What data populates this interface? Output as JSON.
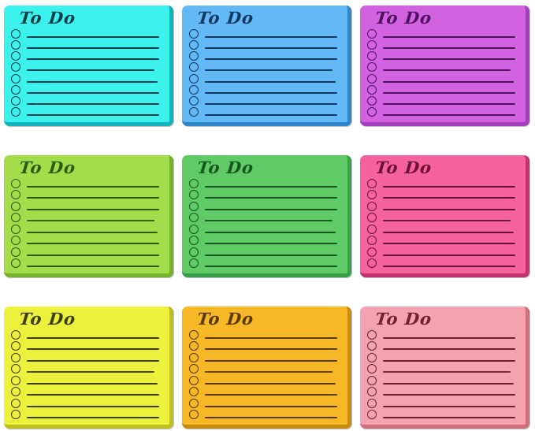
{
  "page": {
    "background_color": "#ffffff",
    "grid": {
      "rows": 3,
      "columns": 3
    }
  },
  "notes": [
    {
      "title": "To Do",
      "color_name": "cyan",
      "bg": "#3BF2EC",
      "edge": "#14B4BE",
      "ink": "#0D3D49",
      "checkbox_lines": 8
    },
    {
      "title": "To Do",
      "color_name": "sky-blue",
      "bg": "#63B8F6",
      "edge": "#2E85CC",
      "ink": "#113863",
      "checkbox_lines": 8
    },
    {
      "title": "To Do",
      "color_name": "orchid",
      "bg": "#D163E1",
      "edge": "#A53EBE",
      "ink": "#4E1060",
      "checkbox_lines": 8
    },
    {
      "title": "To Do",
      "color_name": "lime-green",
      "bg": "#A4DD4C",
      "edge": "#76B22B",
      "ink": "#2E5C0C",
      "checkbox_lines": 8
    },
    {
      "title": "To Do",
      "color_name": "green",
      "bg": "#60CB66",
      "edge": "#37A047",
      "ink": "#14571E",
      "checkbox_lines": 8
    },
    {
      "title": "To Do",
      "color_name": "hot-pink",
      "bg": "#F6629B",
      "edge": "#C43170",
      "ink": "#6D1036",
      "checkbox_lines": 8
    },
    {
      "title": "To Do",
      "color_name": "yellow",
      "bg": "#ECF13E",
      "edge": "#BCC11F",
      "ink": "#3C400F",
      "checkbox_lines": 8
    },
    {
      "title": "To Do",
      "color_name": "amber",
      "bg": "#F6B827",
      "edge": "#C68B0C",
      "ink": "#5C3905",
      "checkbox_lines": 8
    },
    {
      "title": "To Do",
      "color_name": "blush-pink",
      "bg": "#F6A2AE",
      "edge": "#D06E7C",
      "ink": "#6F222B",
      "checkbox_lines": 8
    }
  ]
}
